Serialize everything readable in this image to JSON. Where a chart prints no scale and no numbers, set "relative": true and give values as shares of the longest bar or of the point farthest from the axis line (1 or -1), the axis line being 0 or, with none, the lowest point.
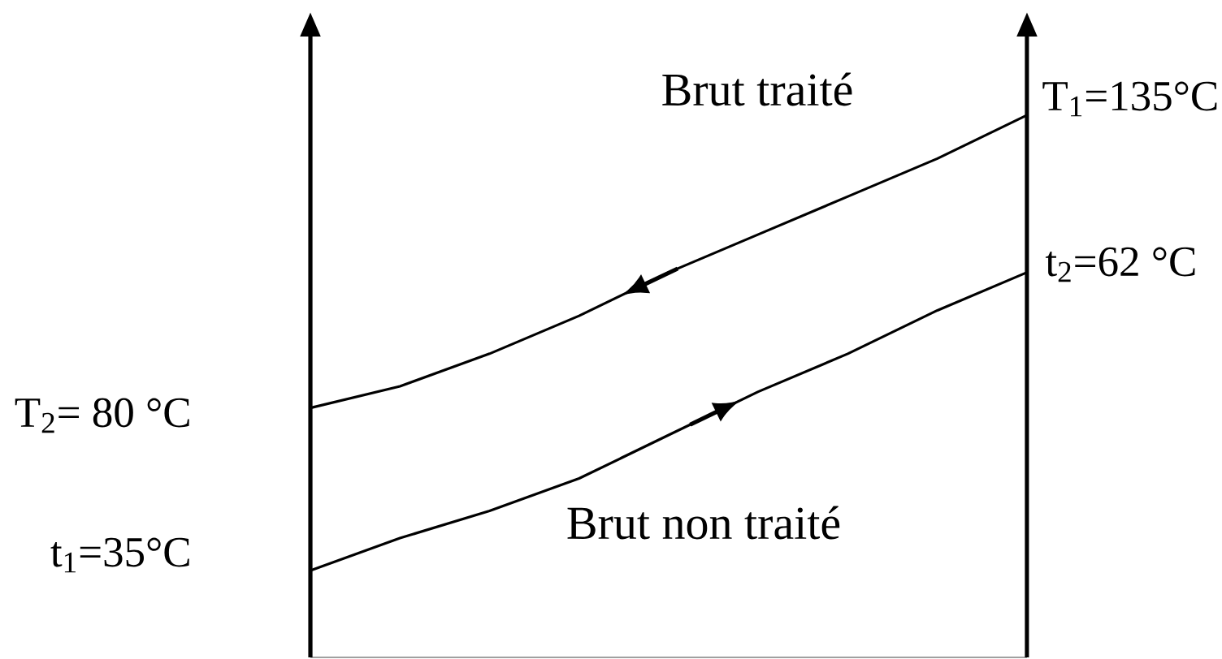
{
  "chart_data": {
    "type": "line",
    "relative": true,
    "categories": [
      null,
      null,
      null,
      null,
      null,
      null,
      null,
      null,
      null
    ],
    "series": [
      {
        "name": "Brut traité",
        "color": "#000000",
        "values": [
          0.46,
          0.5,
          0.56,
          0.63,
          0.71,
          0.78,
          0.85,
          0.92,
          1
        ]
      },
      {
        "name": "Brut non traité",
        "color": "#000000",
        "values": [
          0.16,
          0.22,
          0.27,
          0.33,
          0.41,
          0.49,
          0.56,
          0.64,
          0.71
        ]
      }
    ],
    "annotations": [
      "T$_{1}$=135°C",
      "t$_{2}$=62 °C",
      "T$_{2}$= 80 °C",
      "t$_{1}$=35°C"
    ]
  }
}
